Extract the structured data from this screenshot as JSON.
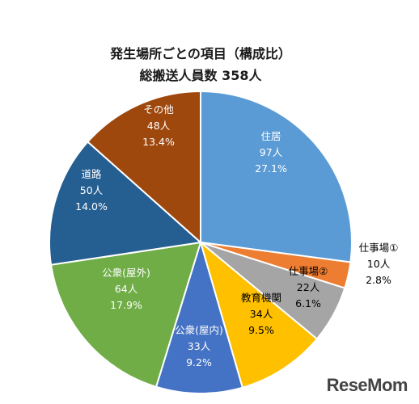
{
  "chart_data": {
    "type": "pie",
    "title": "発生場所ごとの項目（構成比）",
    "subtitle": "総搬送人員数 358人",
    "unit": "人",
    "total": 358,
    "slices": [
      {
        "label": "住居",
        "count_text": "97人",
        "percent_text": "27.1%",
        "value": 97,
        "color": "#5b9bd5",
        "text_color": "#ffffff"
      },
      {
        "label": "仕事場①",
        "count_text": "10人",
        "percent_text": "2.8%",
        "value": 10,
        "color": "#ed7d31",
        "text_color": "#000000"
      },
      {
        "label": "仕事場②",
        "count_text": "22人",
        "percent_text": "6.1%",
        "value": 22,
        "color": "#a5a5a5",
        "text_color": "#000000"
      },
      {
        "label": "教育機関",
        "count_text": "34人",
        "percent_text": "9.5%",
        "value": 34,
        "color": "#ffc000",
        "text_color": "#000000"
      },
      {
        "label": "公衆(屋内)",
        "count_text": "33人",
        "percent_text": "9.2%",
        "value": 33,
        "color": "#4472c4",
        "text_color": "#ffffff"
      },
      {
        "label": "公衆(屋外)",
        "count_text": "64人",
        "percent_text": "17.9%",
        "value": 64,
        "color": "#70ad47",
        "text_color": "#ffffff"
      },
      {
        "label": "道路",
        "count_text": "50人",
        "percent_text": "14.0%",
        "value": 50,
        "color": "#255e91",
        "text_color": "#ffffff"
      },
      {
        "label": "その他",
        "count_text": "48人",
        "percent_text": "13.4%",
        "value": 48,
        "color": "#9e480e",
        "text_color": "#ffffff"
      }
    ]
  },
  "watermark": {
    "text": "ReseMom",
    "brand_color": "#444444"
  }
}
